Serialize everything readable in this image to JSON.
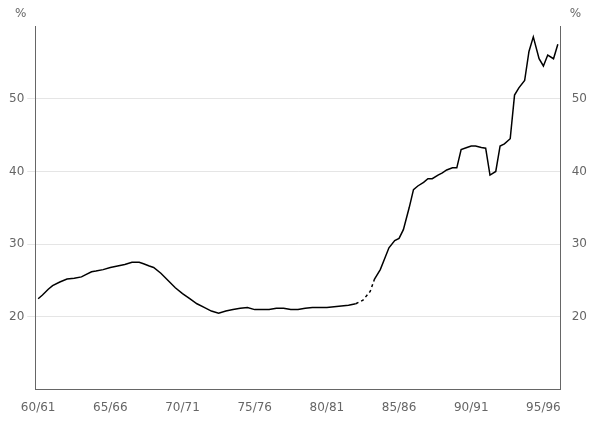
{
  "chart_data": {
    "type": "line",
    "y_label": "%",
    "y2_label": "%",
    "xlim": [
      -0.2,
      36.2
    ],
    "xticks": [
      {
        "value": 0,
        "label": "60/61"
      },
      {
        "value": 5,
        "label": "65/66"
      },
      {
        "value": 10,
        "label": "70/71"
      },
      {
        "value": 15,
        "label": "75/76"
      },
      {
        "value": 20,
        "label": "80/81"
      },
      {
        "value": 25,
        "label": "85/86"
      },
      {
        "value": 30,
        "label": "90/91"
      },
      {
        "value": 35,
        "label": "95/96"
      }
    ],
    "ylim": [
      10,
      60
    ],
    "yticks": [
      20,
      30,
      40,
      50
    ],
    "y2lim": [
      10,
      60
    ],
    "y2ticks": [
      20,
      30,
      40,
      50
    ],
    "grid": "y",
    "series": [
      {
        "color": "#000000",
        "line_style": "solid",
        "x": [
          0,
          0.3,
          0.7,
          1.0,
          1.5,
          2.0,
          2.5,
          3.0,
          3.3,
          3.7,
          4.0,
          4.5,
          5.0,
          5.5,
          6.0,
          6.5,
          7.0,
          7.3,
          7.7,
          8.0,
          8.5,
          9.0,
          9.5,
          10.0,
          10.5,
          11.0,
          11.5,
          12.0,
          12.5,
          13.0,
          13.5,
          14.0,
          14.5,
          15.0,
          15.5,
          16.0,
          16.5,
          17.0,
          17.5,
          18.0,
          18.5,
          19.0,
          19.5,
          20.0,
          20.5,
          21.0,
          21.5,
          22.0
        ],
        "values": [
          22.5,
          23.0,
          23.8,
          24.3,
          24.8,
          25.2,
          25.3,
          25.5,
          25.8,
          26.2,
          26.3,
          26.5,
          26.8,
          27.0,
          27.2,
          27.5,
          27.5,
          27.3,
          27.0,
          26.8,
          26.0,
          25.0,
          24.0,
          23.2,
          22.5,
          21.8,
          21.3,
          20.8,
          20.5,
          20.8,
          21.0,
          21.2,
          21.3,
          21.0,
          21.0,
          21.0,
          21.2,
          21.2,
          21.0,
          21.0,
          21.2,
          21.3,
          21.3,
          21.3,
          21.4,
          21.5,
          21.6,
          21.8
        ]
      },
      {
        "color": "#000000",
        "line_style": "dashed",
        "x": [
          22.0,
          22.5,
          23.0,
          23.3
        ],
        "values": [
          21.8,
          22.3,
          23.5,
          25.2
        ]
      },
      {
        "color": "#000000",
        "line_style": "solid",
        "x": [
          23.3,
          23.7,
          24.0,
          24.3,
          24.7,
          25.0,
          25.3,
          25.7,
          26.0,
          26.3,
          26.7,
          27.0,
          27.3,
          27.7,
          28.0,
          28.3,
          28.7,
          29.0,
          29.3,
          29.7,
          30.0,
          30.3,
          30.7,
          31.0,
          31.3,
          31.7,
          32.0,
          32.3,
          32.7,
          33.0,
          33.3,
          33.7,
          34.0,
          34.3,
          34.7,
          35.0,
          35.3,
          35.7,
          36.0
        ],
        "values": [
          25.2,
          26.5,
          28.0,
          29.5,
          30.5,
          30.8,
          32.0,
          35.0,
          37.5,
          38.0,
          38.5,
          39.0,
          39.0,
          39.5,
          39.8,
          40.2,
          40.5,
          40.5,
          43.0,
          43.3,
          43.5,
          43.5,
          43.3,
          43.2,
          39.5,
          40.0,
          43.5,
          43.8,
          44.5,
          50.5,
          51.5,
          52.5,
          56.5,
          58.5,
          55.5,
          54.5,
          56.0,
          55.5,
          57.5
        ]
      }
    ]
  }
}
